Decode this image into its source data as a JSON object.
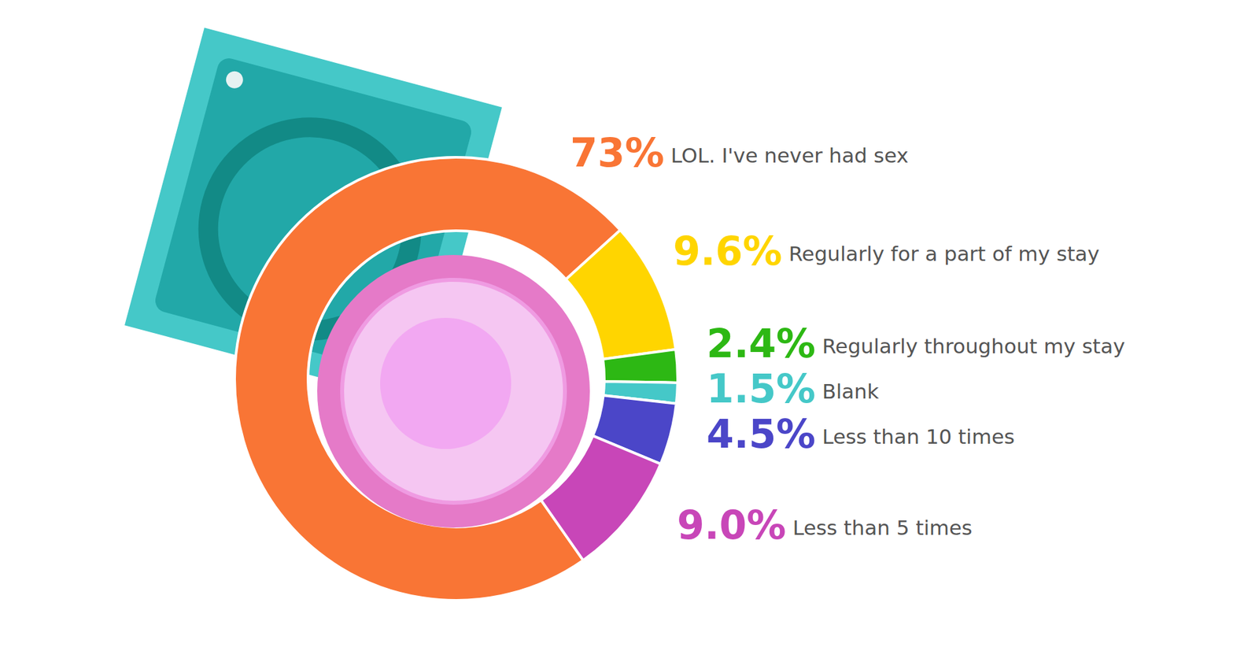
{
  "chart_data": {
    "type": "pie",
    "categories": [
      "LOL. I've never had sex",
      "Regularly for a part of my stay",
      "Regularly throughout my stay",
      "Blank",
      "Less than 10 times",
      "Less than 5 times"
    ],
    "values": [
      73,
      9.6,
      2.4,
      1.5,
      4.5,
      9.0
    ],
    "value_labels": [
      "73%",
      "9.6%",
      "2.4%",
      "1.5%",
      "4.5%",
      "9.0%"
    ],
    "colors": [
      "#f97535",
      "#ffd500",
      "#2db814",
      "#45c8c8",
      "#4b46c8",
      "#c846b8"
    ],
    "data_labels": true
  }
}
